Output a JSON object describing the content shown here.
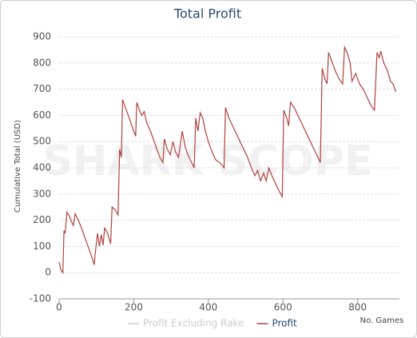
{
  "chart_data": {
    "type": "line",
    "title": "Total Profit",
    "watermark": "SHARK SCOPE",
    "ylabel": "Cumulative Total (USD)",
    "xlabel": "No. Games",
    "xlim": [
      0,
      912
    ],
    "ylim": [
      -100,
      900
    ],
    "xticks": [
      0,
      200,
      400,
      600,
      800
    ],
    "yticks": [
      -100,
      0,
      100,
      200,
      300,
      400,
      500,
      600,
      700,
      800,
      900
    ],
    "grid": true,
    "legend": "bottom",
    "x": [
      0,
      5,
      10,
      13,
      16,
      21,
      28,
      33,
      38,
      43,
      50,
      60,
      70,
      80,
      90,
      94,
      98,
      103,
      108,
      113,
      118,
      122,
      130,
      138,
      142,
      150,
      158,
      162,
      167,
      170,
      180,
      188,
      195,
      205,
      208,
      215,
      222,
      228,
      235,
      245,
      255,
      262,
      270,
      278,
      282,
      290,
      298,
      305,
      312,
      320,
      330,
      338,
      345,
      352,
      362,
      366,
      372,
      378,
      385,
      392,
      400,
      410,
      420,
      430,
      437,
      442,
      446,
      455,
      465,
      475,
      485,
      495,
      505,
      515,
      525,
      532,
      540,
      548,
      555,
      562,
      570,
      580,
      590,
      598,
      602,
      610,
      615,
      620,
      630,
      640,
      650,
      660,
      670,
      680,
      690,
      700,
      705,
      712,
      718,
      722,
      730,
      740,
      750,
      760,
      765,
      772,
      780,
      785,
      795,
      805,
      815,
      825,
      835,
      845,
      852,
      858,
      862,
      870,
      880,
      888,
      895,
      902
    ],
    "series": [
      {
        "name": "Profit Excluding Rake",
        "color": "#cccccc",
        "hidden": true
      },
      {
        "name": "Profit",
        "color": "#b0413e",
        "values": [
          40,
          10,
          0,
          160,
          150,
          230,
          215,
          195,
          180,
          225,
          205,
          170,
          130,
          90,
          50,
          30,
          90,
          150,
          100,
          145,
          105,
          170,
          150,
          110,
          250,
          240,
          220,
          470,
          440,
          660,
          620,
          590,
          560,
          520,
          650,
          620,
          600,
          615,
          570,
          540,
          500,
          470,
          440,
          420,
          510,
          470,
          450,
          500,
          460,
          440,
          540,
          480,
          450,
          430,
          400,
          590,
          540,
          610,
          590,
          540,
          500,
          460,
          430,
          420,
          410,
          400,
          630,
          590,
          560,
          530,
          500,
          470,
          440,
          400,
          370,
          390,
          350,
          380,
          350,
          400,
          370,
          340,
          310,
          290,
          620,
          590,
          560,
          650,
          630,
          600,
          570,
          540,
          510,
          480,
          450,
          420,
          780,
          740,
          720,
          840,
          810,
          770,
          740,
          720,
          860,
          840,
          800,
          730,
          760,
          720,
          700,
          670,
          640,
          620,
          840,
          820,
          845,
          800,
          770,
          730,
          720,
          690
        ]
      }
    ]
  }
}
